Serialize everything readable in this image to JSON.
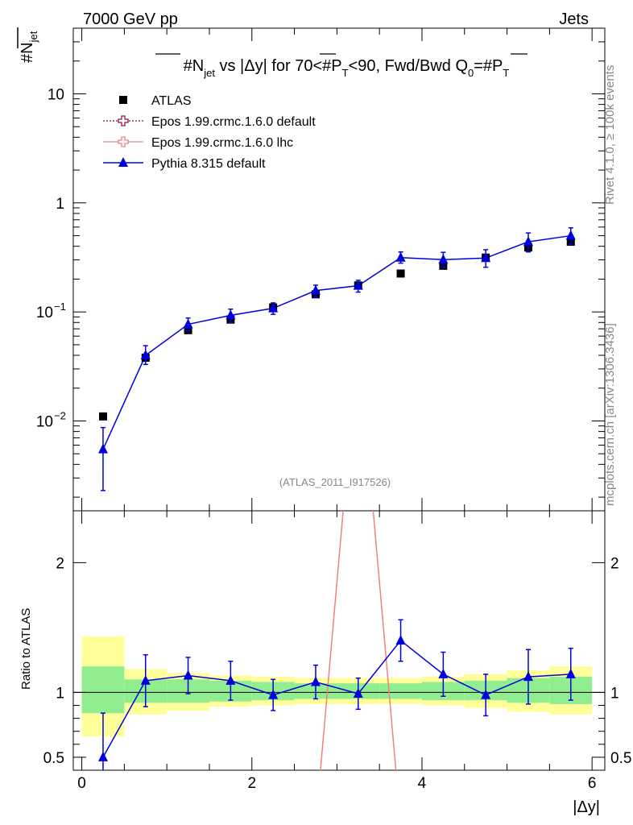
{
  "header": {
    "left": "7000 GeV pp",
    "right": "Jets"
  },
  "title": {
    "main": "#N",
    "main_sub": "jet",
    "mid": " vs |Δy| for 70<#P",
    "mid_sub": "T",
    "tail": "<90, Fwd/Bwd Q",
    "tail_sub": "0",
    "tail2": "=#P",
    "tail2_sub": "T"
  },
  "side_labels": {
    "rivet": "Rivet 4.1.0, ≥ 100k events",
    "mcplots": "mcplots.cern.ch [arXiv:1306.3436]"
  },
  "watermark": "(ATLAS_2011_I917526)",
  "y_label_top": {
    "main": "#N",
    "sub": "jet"
  },
  "y_label_bottom": "Ratio to ATLAS",
  "x_label": "|Δy|",
  "legend": [
    {
      "label": "ATLAS",
      "color": "#000000",
      "marker": "square"
    },
    {
      "label": "Epos 1.99.crmc.1.6.0 default",
      "color": "#8b1a3a",
      "marker": "cross-open"
    },
    {
      "label": "Epos 1.99.crmc.1.6.0 lhc",
      "color": "#f08080",
      "marker": "cross-open"
    },
    {
      "label": "Pythia 8.315 default",
      "color": "#0000dd",
      "marker": "triangle"
    }
  ],
  "ticks": {
    "top_y": [
      {
        "label": "10",
        "value": 10
      },
      {
        "label": "1",
        "value": 1
      },
      {
        "label": "10",
        "sup": "−1",
        "value": 0.1
      },
      {
        "label": "10",
        "sup": "−2",
        "value": 0.01
      }
    ],
    "bottom_y": [
      {
        "label": "2",
        "value": 2
      },
      {
        "label": "1",
        "value": 1
      },
      {
        "label": "0.5",
        "value": 0.5
      }
    ],
    "x": [
      {
        "label": "0",
        "value": 0
      },
      {
        "label": "2",
        "value": 2
      },
      {
        "label": "4",
        "value": 4
      },
      {
        "label": "6",
        "value": 6
      }
    ]
  },
  "chart_data": {
    "type": "scatter",
    "title": "#N_jet vs |Δy| for 70<#P_T<90, Fwd/Bwd Q_0=#P_T",
    "xlabel": "|Δy|",
    "ylabel": "#N_jet",
    "xlim": [
      -0.1,
      6.15
    ],
    "ylim": [
      0.0015,
      40
    ],
    "yscale": "log",
    "ratio_ylabel": "Ratio to ATLAS",
    "ratio_ylim": [
      0.4,
      2.4
    ],
    "x_edges": [
      0,
      0.5,
      1,
      1.5,
      2,
      2.5,
      3,
      3.5,
      4,
      4.5,
      5,
      5.5,
      6
    ],
    "x": [
      0.25,
      0.75,
      1.25,
      1.75,
      2.25,
      2.75,
      3.25,
      3.75,
      4.25,
      4.75,
      5.25,
      5.75
    ],
    "series": [
      {
        "name": "ATLAS",
        "values": [
          0.011,
          0.038,
          0.068,
          0.085,
          0.11,
          0.145,
          0.175,
          0.225,
          0.265,
          0.315,
          0.39,
          0.44
        ],
        "err": [
          0.0008,
          0.003,
          0.005,
          0.006,
          0.008,
          0.01,
          0.012,
          0.015,
          0.018,
          0.022,
          0.03,
          0.035
        ]
      },
      {
        "name": "Pythia 8.315 default",
        "values": [
          0.0055,
          0.04,
          0.077,
          0.093,
          0.108,
          0.157,
          0.174,
          0.315,
          0.302,
          0.312,
          0.44,
          0.5
        ],
        "err_lo": [
          0.0032,
          0.007,
          0.01,
          0.013,
          0.013,
          0.02,
          0.022,
          0.035,
          0.045,
          0.055,
          0.085,
          0.085
        ],
        "err_hi": [
          0.0032,
          0.009,
          0.011,
          0.013,
          0.013,
          0.019,
          0.021,
          0.04,
          0.05,
          0.06,
          0.09,
          0.09
        ]
      },
      {
        "name": "Pythia 8.315 default ratio",
        "values": [
          0.5,
          1.09,
          1.13,
          1.09,
          0.98,
          1.08,
          0.99,
          1.4,
          1.14,
          0.98,
          1.12,
          1.14
        ],
        "err_lo": [
          0.34,
          0.2,
          0.14,
          0.15,
          0.12,
          0.13,
          0.12,
          0.16,
          0.17,
          0.16,
          0.21,
          0.2
        ],
        "err_hi": [
          0.34,
          0.2,
          0.14,
          0.15,
          0.12,
          0.13,
          0.12,
          0.16,
          0.17,
          0.16,
          0.21,
          0.2
        ]
      },
      {
        "name": "Epos 1.99.crmc.1.6.0 lhc ratio",
        "x": [
          2.8,
          3.1,
          3.4,
          3.7
        ],
        "values": [
          0.35,
          2.6,
          2.6,
          0.35
        ]
      }
    ],
    "ratio_band_inner": [
      [
        0.84,
        1.2
      ],
      [
        0.92,
        1.1
      ],
      [
        0.92,
        1.1
      ],
      [
        0.93,
        1.09
      ],
      [
        0.94,
        1.08
      ],
      [
        0.95,
        1.07
      ],
      [
        0.95,
        1.07
      ],
      [
        0.95,
        1.07
      ],
      [
        0.94,
        1.08
      ],
      [
        0.94,
        1.09
      ],
      [
        0.92,
        1.11
      ],
      [
        0.91,
        1.12
      ]
    ],
    "ratio_band_outer": [
      [
        0.66,
        1.43
      ],
      [
        0.83,
        1.18
      ],
      [
        0.86,
        1.15
      ],
      [
        0.89,
        1.13
      ],
      [
        0.9,
        1.12
      ],
      [
        0.91,
        1.11
      ],
      [
        0.91,
        1.11
      ],
      [
        0.91,
        1.11
      ],
      [
        0.9,
        1.12
      ],
      [
        0.88,
        1.14
      ],
      [
        0.85,
        1.17
      ],
      [
        0.83,
        1.2
      ]
    ]
  }
}
